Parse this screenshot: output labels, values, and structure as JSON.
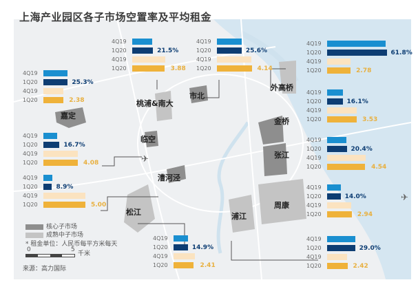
{
  "title": "上海产业园区各子市场空置率及平均租金",
  "period_labels": [
    "4Q19",
    "1Q20",
    "4Q19",
    "1Q20"
  ],
  "colors": {
    "vac_4q19": "#1a8fd0",
    "vac_1q20": "#0d3d73",
    "rent_4q19": "#fbe3c0",
    "rent_1q20": "#efb23a",
    "vac_text": "#0d3d73",
    "rent_text": "#e8b040",
    "core": "#8e8e8e",
    "mature": "#c4c4c4",
    "water": "#d5e6f1",
    "land": "#eef0f2"
  },
  "panels": [
    {
      "district": "嘉定",
      "vacancy_4q19": 25.0,
      "vacancy_1q20": 25.3,
      "vacancy_label": "25.3%",
      "rent_4q19": 2.4,
      "rent_1q20": 2.38,
      "rent_label": "2.38"
    },
    {
      "district": "桃浦&南大",
      "vacancy_4q19": 21.0,
      "vacancy_1q20": 21.5,
      "vacancy_label": "21.5%",
      "rent_4q19": 3.9,
      "rent_1q20": 3.88,
      "rent_label": "3.88"
    },
    {
      "district": "市北",
      "vacancy_4q19": 25.5,
      "vacancy_1q20": 25.6,
      "vacancy_label": "25.6%",
      "rent_4q19": 4.1,
      "rent_1q20": 4.14,
      "rent_label": "4.14"
    },
    {
      "district": "外高桥",
      "vacancy_4q19": 61.0,
      "vacancy_1q20": 61.8,
      "vacancy_label": "61.8%",
      "rent_4q19": 2.8,
      "rent_1q20": 2.78,
      "rent_label": "2.78"
    },
    {
      "district": "金桥",
      "vacancy_4q19": 16.5,
      "vacancy_1q20": 16.1,
      "vacancy_label": "16.1%",
      "rent_4q19": 3.5,
      "rent_1q20": 3.53,
      "rent_label": "3.53"
    },
    {
      "district": "张江",
      "vacancy_4q19": 20.0,
      "vacancy_1q20": 20.4,
      "vacancy_label": "20.4%",
      "rent_4q19": 4.6,
      "rent_1q20": 4.54,
      "rent_label": "4.54"
    },
    {
      "district": "周康",
      "vacancy_4q19": 14.0,
      "vacancy_1q20": 14.0,
      "vacancy_label": "14.0%",
      "rent_4q19": 2.9,
      "rent_1q20": 2.94,
      "rent_label": "2.94"
    },
    {
      "district": "浦江",
      "vacancy_4q19": 29.0,
      "vacancy_1q20": 29.0,
      "vacancy_label": "29.0%",
      "rent_4q19": 2.4,
      "rent_1q20": 2.42,
      "rent_label": "2.42"
    },
    {
      "district": "临空",
      "vacancy_4q19": 14.0,
      "vacancy_1q20": 16.7,
      "vacancy_label": "16.7%",
      "rent_4q19": 4.1,
      "rent_1q20": 4.08,
      "rent_label": "4.08"
    },
    {
      "district": "漕河泾",
      "vacancy_4q19": 9.0,
      "vacancy_1q20": 8.9,
      "vacancy_label": "8.9%",
      "rent_4q19": 5.0,
      "rent_1q20": 5.0,
      "rent_label": "5.00"
    },
    {
      "district": "松江",
      "vacancy_4q19": 15.0,
      "vacancy_1q20": 14.9,
      "vacancy_label": "14.9%",
      "rent_4q19": 2.5,
      "rent_1q20": 2.41,
      "rent_label": "2.41"
    }
  ],
  "legend": {
    "core": "核心子市场",
    "mature": "成熟中子市场",
    "rent_note": "* 租金单位：人民币每平方米每天",
    "scale_0": "0",
    "scale_5": "5",
    "scale_unit": "千米"
  },
  "source": "来源：高力国际",
  "icons": [
    "airplane-icon"
  ]
}
